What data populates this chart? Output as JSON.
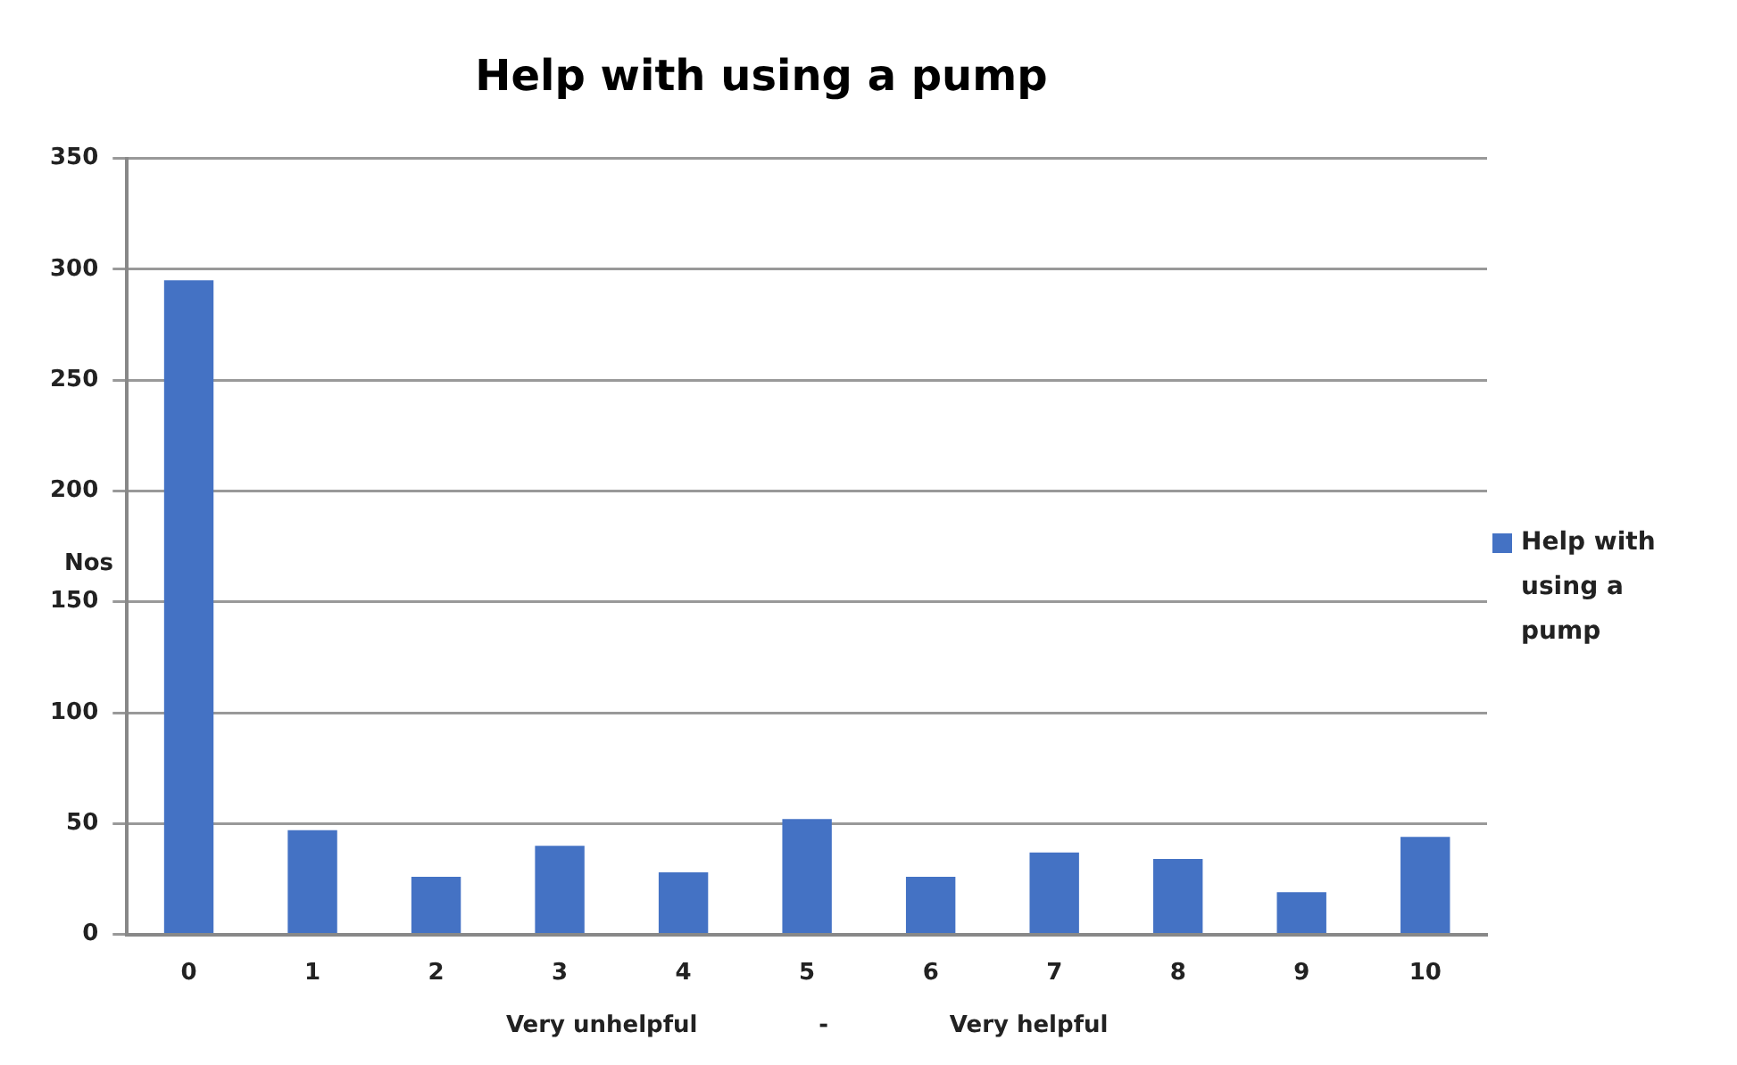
{
  "chart_data": {
    "type": "bar",
    "title": "Help with using a pump",
    "xlabel": "Very unhelpful               -               Very helpful",
    "ylabel": "Nos",
    "categories": [
      "0",
      "1",
      "2",
      "3",
      "4",
      "5",
      "6",
      "7",
      "8",
      "9",
      "10"
    ],
    "series": [
      {
        "name": "Help with using a pump",
        "color": "#4472c4",
        "values": [
          295,
          47,
          26,
          40,
          28,
          52,
          26,
          37,
          34,
          19,
          44
        ]
      }
    ],
    "ylim": [
      0,
      350
    ],
    "yticks": [
      0,
      50,
      100,
      150,
      200,
      250,
      300,
      350
    ],
    "grid": "y",
    "legend": "right"
  }
}
